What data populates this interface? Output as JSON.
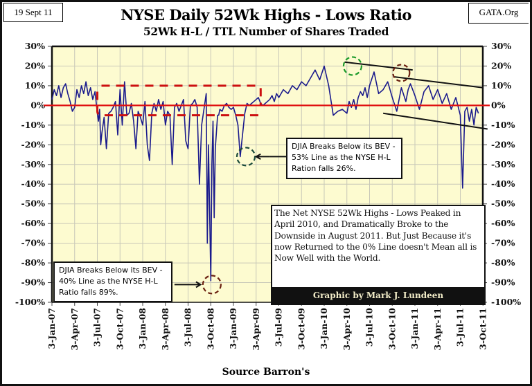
{
  "header": {
    "date": "19 Sept 11",
    "source_label": "GATA.Org",
    "title": "NYSE Daily 52Wk Highs - Lows Ratio",
    "subtitle": "52Wk H-L / TTL Number of Shares Traded"
  },
  "colors": {
    "plot_bg": "#fdfbd0",
    "grid": "#c8c8b8",
    "series": "#1a1a8c",
    "zero_line": "#e01010",
    "dashed_box": "#cc1010",
    "trend_lines": "#111111",
    "circle_green": "#1a9a2a",
    "circle_brown": "#6a2010",
    "circle_teal": "#1a4a3a"
  },
  "annotations": {
    "callout_2008": [
      "DJIA Breaks Below its BEV -",
      "40% Line as the NYSE H-L",
      "Ratio falls  89%."
    ],
    "callout_2009": [
      "DJIA Breaks Below its BEV -",
      "53% Line as the NYSE H-L",
      "Ration falls  26%."
    ],
    "note": "The Net NYSE 52Wk Highs - Lows Peaked in April 2010, and Dramatically Broke to the Downside  in August 2011.  But Just Because it's now Returned to the 0% Line doesn't Mean all is Now Well with the World.",
    "credit": "Graphic by Mark J. Lundeen",
    "xaxis_title": "Source Barron's"
  },
  "chart_data": {
    "type": "line",
    "title": "NYSE Daily 52Wk Highs - Lows Ratio",
    "subtitle": "52Wk H-L / TTL Number of Shares Traded",
    "xlabel": "Source Barron's",
    "ylabel": "",
    "ylim": [
      -100,
      30
    ],
    "y_ticks": [
      "30%",
      "20%",
      "10%",
      "0%",
      "-10%",
      "-20%",
      "-30%",
      "-40%",
      "-50%",
      "-60%",
      "-70%",
      "-80%",
      "-90%",
      "-100%"
    ],
    "y_tick_values": [
      30,
      20,
      10,
      0,
      -10,
      -20,
      -30,
      -40,
      -50,
      -60,
      -70,
      -80,
      -90,
      -100
    ],
    "x_ticks": [
      "3-Jan-07",
      "3-Apr-07",
      "3-Jul-07",
      "3-Oct-07",
      "3-Jan-08",
      "3-Apr-08",
      "3-Jul-08",
      "3-Oct-08",
      "3-Jan-09",
      "3-Apr-09",
      "3-Jul-09",
      "3-Oct-09",
      "3-Jan-10",
      "3-Apr-10",
      "3-Jul-10",
      "3-Oct-10",
      "3-Jan-11",
      "3-Apr-11",
      "3-Jul-11",
      "3-Oct-11"
    ],
    "grid": true,
    "legend": "none",
    "reference_line": {
      "y": 0,
      "label": "0%"
    },
    "series": [
      {
        "name": "NYSE 52Wk H-L Ratio (%)",
        "x_quarter_index": [
          0.0,
          0.1,
          0.2,
          0.3,
          0.4,
          0.5,
          0.6,
          0.7,
          0.8,
          0.9,
          1.0,
          1.1,
          1.2,
          1.3,
          1.4,
          1.5,
          1.6,
          1.7,
          1.8,
          1.9,
          2.0,
          2.05,
          2.1,
          2.15,
          2.2,
          2.3,
          2.4,
          2.5,
          2.6,
          2.7,
          2.8,
          2.9,
          3.0,
          3.1,
          3.2,
          3.3,
          3.4,
          3.5,
          3.6,
          3.7,
          3.8,
          3.9,
          4.0,
          4.1,
          4.2,
          4.3,
          4.4,
          4.5,
          4.6,
          4.7,
          4.8,
          4.9,
          5.0,
          5.1,
          5.2,
          5.3,
          5.4,
          5.5,
          5.6,
          5.7,
          5.8,
          5.9,
          6.0,
          6.1,
          6.2,
          6.3,
          6.4,
          6.5,
          6.6,
          6.7,
          6.8,
          6.85,
          6.9,
          7.0,
          7.05,
          7.1,
          7.15,
          7.2,
          7.3,
          7.35,
          7.4,
          7.5,
          7.6,
          7.7,
          7.8,
          7.9,
          8.0,
          8.1,
          8.2,
          8.3,
          8.4,
          8.5,
          8.6,
          8.7,
          8.8,
          8.9,
          9.0,
          9.1,
          9.2,
          9.3,
          9.4,
          9.5,
          9.6,
          9.7,
          9.8,
          9.9,
          10.0,
          10.2,
          10.4,
          10.6,
          10.8,
          11.0,
          11.2,
          11.4,
          11.6,
          11.8,
          12.0,
          12.2,
          12.4,
          12.6,
          12.8,
          13.0,
          13.1,
          13.2,
          13.3,
          13.4,
          13.5,
          13.6,
          13.7,
          13.8,
          13.9,
          14.0,
          14.2,
          14.4,
          14.6,
          14.8,
          15.0,
          15.2,
          15.4,
          15.6,
          15.7,
          15.8,
          16.0,
          16.2,
          16.4,
          16.6,
          16.8,
          17.0,
          17.2,
          17.4,
          17.6,
          17.8,
          18.0,
          18.1,
          18.2,
          18.3,
          18.4,
          18.5,
          18.6,
          18.7,
          18.8
        ],
        "values": [
          3,
          8,
          5,
          10,
          4,
          9,
          11,
          6,
          2,
          -3,
          -1,
          8,
          4,
          10,
          6,
          12,
          5,
          9,
          3,
          7,
          -4,
          -8,
          -2,
          -20,
          -14,
          -6,
          -22,
          -4,
          -3,
          -1,
          2,
          -15,
          8,
          -10,
          12,
          -5,
          -4,
          1,
          -8,
          -22,
          -3,
          -6,
          -10,
          2,
          -20,
          -28,
          -4,
          1,
          -3,
          3,
          -2,
          2,
          -10,
          -3,
          -5,
          -30,
          -1,
          1,
          -3,
          0,
          3,
          -18,
          -22,
          0,
          1,
          3,
          -1,
          -40,
          -10,
          -2,
          6,
          -70,
          -20,
          -89,
          -30,
          -8,
          -57,
          -22,
          -5,
          -5,
          -2,
          -3,
          0,
          1,
          -1,
          -2,
          -1,
          -5,
          -10,
          -26,
          -15,
          -4,
          1,
          0,
          1,
          2,
          3,
          4,
          1,
          0,
          1,
          2,
          3,
          5,
          2,
          6,
          4,
          8,
          6,
          10,
          8,
          12,
          10,
          14,
          18,
          13,
          20,
          10,
          -5,
          -3,
          -2,
          -4,
          2,
          -1,
          3,
          -2,
          4,
          7,
          5,
          9,
          4,
          10,
          17,
          6,
          8,
          12,
          4,
          -3,
          9,
          2,
          8,
          11,
          5,
          -2,
          7,
          10,
          3,
          8,
          1,
          6,
          -2,
          4,
          -5,
          -42,
          -3,
          -1,
          -8,
          -2,
          -10,
          -1,
          -4,
          -7
        ],
        "peak": {
          "date": "April 2010",
          "value": 20
        },
        "trough": {
          "date": "October 2008",
          "value": -89
        }
      }
    ]
  }
}
